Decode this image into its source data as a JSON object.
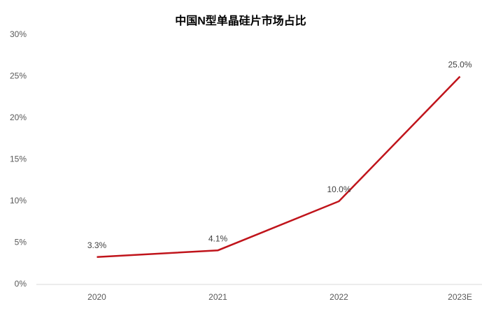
{
  "chart_data": {
    "type": "line",
    "title": "中国N型单晶硅片市场占比",
    "categories": [
      "2020",
      "2021",
      "2022",
      "2023E"
    ],
    "values": [
      3.3,
      4.1,
      10.0,
      25.0
    ],
    "value_labels": [
      "3.3%",
      "4.1%",
      "10.0%",
      "25.0%"
    ],
    "color": "#c0141b",
    "ylim": [
      0,
      30
    ],
    "yticks": [
      {
        "value": 0,
        "label": "0%"
      },
      {
        "value": 5,
        "label": "5%"
      },
      {
        "value": 10,
        "label": "10%"
      },
      {
        "value": 15,
        "label": "15%"
      },
      {
        "value": 20,
        "label": "20%"
      },
      {
        "value": 25,
        "label": "25%"
      },
      {
        "value": 30,
        "label": "30%"
      }
    ],
    "grid": false
  }
}
